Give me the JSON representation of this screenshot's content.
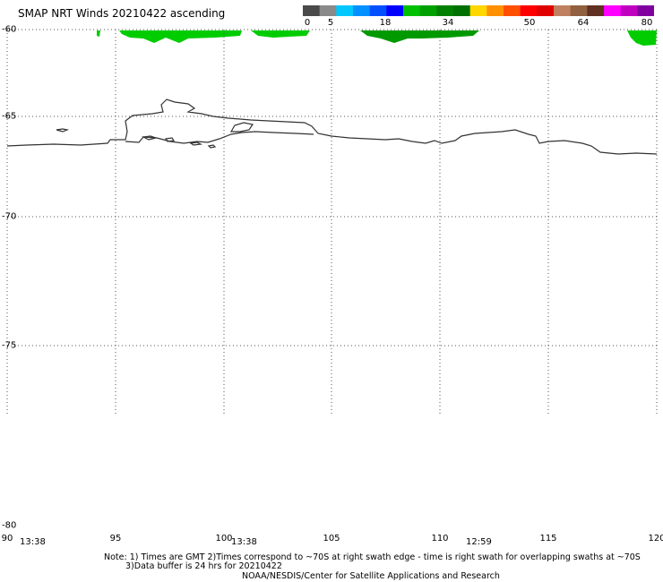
{
  "title": "SMAP NRT Winds 20210422 ascending",
  "colorbar": {
    "labels": [
      "0",
      "5",
      "18",
      "34",
      "50",
      "64",
      "80"
    ],
    "colors": [
      "#4a4a4a",
      "#8a8a8a",
      "#00c8ff",
      "#0090ff",
      "#0050ff",
      "#0000ff",
      "#00c000",
      "#00a000",
      "#008000",
      "#007000",
      "#ffd700",
      "#ff9000",
      "#ff5000",
      "#ff0000",
      "#e00000",
      "#c08060",
      "#906040",
      "#603020",
      "#ff00ff",
      "#c000c0",
      "#8000a0"
    ]
  },
  "lat_labels": [
    "-60",
    "-65",
    "-70",
    "-75",
    "-80"
  ],
  "lon_labels": [
    "90",
    "95",
    "100",
    "105",
    "110",
    "115",
    "120"
  ],
  "times": [
    "13:38",
    "13:38",
    "12:59"
  ],
  "notes": {
    "line1": "Note: 1) Times are GMT 2)Times correspond to ~70S at right swath edge - time is right swath for overlapping swaths at ~70S",
    "line2": "3)Data buffer is 24 hrs for 20210422",
    "line3": "NOAA/NESDIS/Center for Satellite Applications and Research"
  },
  "legend_colors": {
    "coast": "#333333",
    "wind_green": "#00cc00",
    "wind_dark_green": "#009900",
    "grid": "#555555"
  }
}
